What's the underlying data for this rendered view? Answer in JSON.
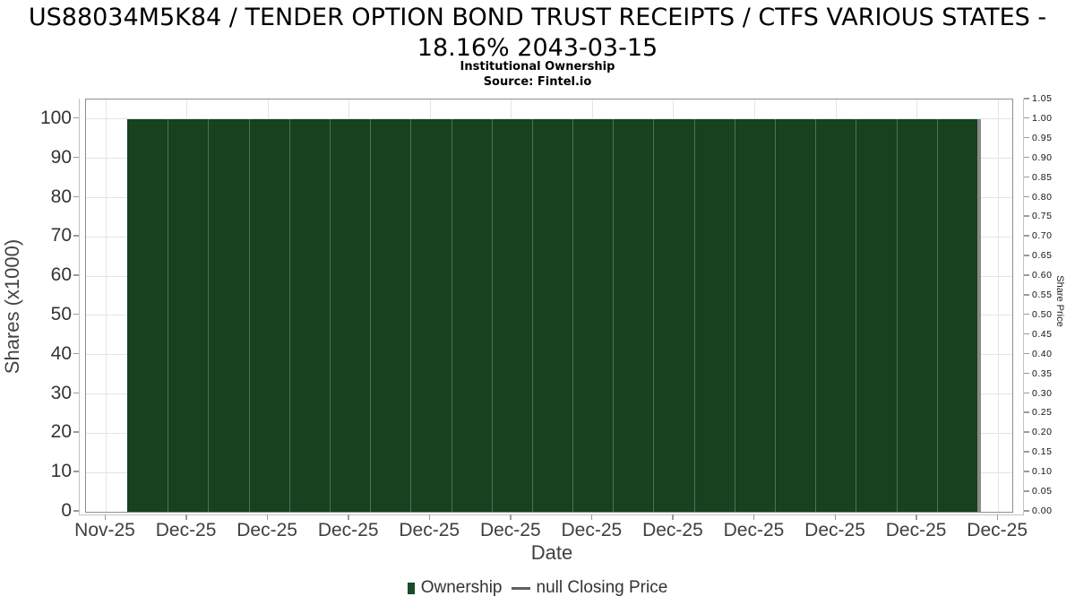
{
  "chart_data": {
    "type": "bar",
    "title_line1": "US88034M5K84 / TENDER OPTION BOND TRUST RECEIPTS / CTFS VARIOUS STATES -",
    "title_line2": "18.16% 2043-03-15",
    "subtitle": "Institutional Ownership",
    "source": "Source: Fintel.io",
    "xlabel": "Date",
    "ylabel_left": "Shares (x1000)",
    "ylabel_right": "Share Price",
    "x_tick_labels": [
      "Nov-25",
      "Dec-25",
      "Dec-25",
      "Dec-25",
      "Dec-25",
      "Dec-25",
      "Dec-25",
      "Dec-25",
      "Dec-25",
      "Dec-25",
      "Dec-25",
      "Dec-25"
    ],
    "y_left": {
      "ticks": [
        0,
        10,
        20,
        30,
        40,
        50,
        60,
        70,
        80,
        90,
        100
      ],
      "min": 0,
      "max": 105
    },
    "y_right": {
      "tick_min": 0.0,
      "tick_max": 1.05,
      "tick_step": 0.05,
      "decimals": 2
    },
    "series": [
      {
        "name": "Ownership",
        "type": "bar",
        "color": "#17411f",
        "value": 100,
        "bar_count": 21,
        "start_frac": 0.0445,
        "end_frac": 0.9623
      },
      {
        "name": "null Closing Price",
        "type": "line",
        "color": "#8a8a8a",
        "values": null,
        "end_marker_frac": 0.9623,
        "end_marker_width_px": 4
      }
    ],
    "legend": [
      {
        "label": "Ownership",
        "marker": "square",
        "color": "#1c4a24"
      },
      {
        "label": "null Closing Price",
        "marker": "line",
        "color": "#5f5f5f"
      }
    ],
    "grid": {
      "horizontal_every": 10,
      "vertical_at_ticks": true,
      "color": "#e4e4e4"
    },
    "layout": {
      "x_first_tick_frac": 0.0213,
      "x_tick_step_frac": 0.08758,
      "legend_position": "bottom-center"
    }
  }
}
